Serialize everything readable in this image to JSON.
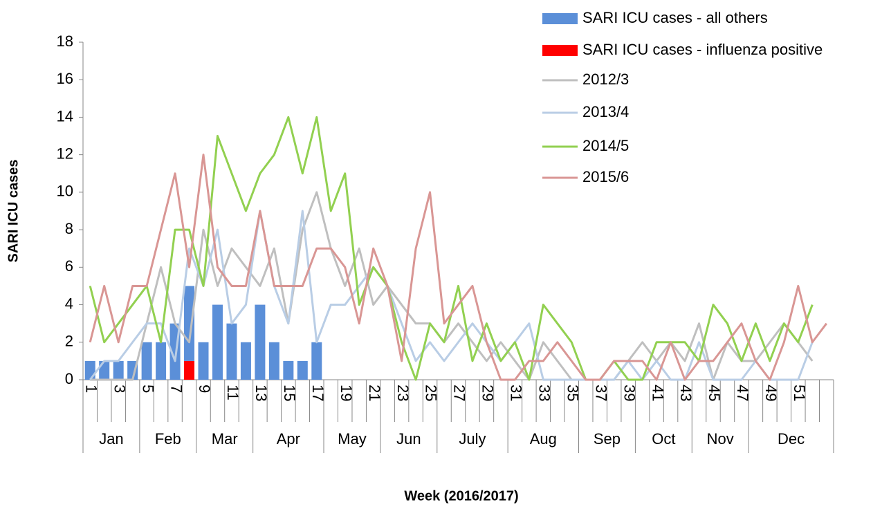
{
  "chart_data": {
    "type": "combo",
    "x_label": "Week (2016/2017)",
    "y_label": "SARI ICU cases",
    "categories": [
      "1",
      null,
      "3",
      null,
      "5",
      null,
      "7",
      null,
      "9",
      null,
      "11",
      null,
      "13",
      null,
      "15",
      null,
      "17",
      null,
      "19",
      null,
      "21",
      null,
      "23",
      null,
      "25",
      null,
      "27",
      null,
      "29",
      null,
      "31",
      null,
      "33",
      null,
      "35",
      null,
      "37",
      null,
      "39",
      null,
      "41",
      null,
      "43",
      null,
      "45",
      null,
      "47",
      null,
      "49",
      null,
      "51",
      null,
      null
    ],
    "months": [
      "Jan",
      "Jan",
      "Jan",
      "Jan",
      "Feb",
      "Feb",
      "Feb",
      "Feb",
      "Mar",
      "Mar",
      "Mar",
      "Mar",
      "Apr",
      "Apr",
      "Apr",
      "Apr",
      "Apr",
      "May",
      "May",
      "May",
      "May",
      "Jun",
      "Jun",
      "Jun",
      "Jun",
      "July",
      "July",
      "July",
      "July",
      "July",
      "Aug",
      "Aug",
      "Aug",
      "Aug",
      "Aug",
      "Sep",
      "Sep",
      "Sep",
      "Sep",
      "Oct",
      "Oct",
      "Oct",
      "Oct",
      "Nov",
      "Nov",
      "Nov",
      "Nov",
      "Dec",
      "Dec",
      "Dec",
      "Dec",
      "Dec",
      "Dec"
    ],
    "ylim": [
      0,
      18
    ],
    "yticks": [
      0,
      2,
      4,
      6,
      8,
      10,
      12,
      14,
      16,
      18
    ],
    "legend": "top-right",
    "series": [
      {
        "name": "SARI ICU cases - all others",
        "type": "bar",
        "color": "#5b8fd8",
        "values": [
          1,
          1,
          1,
          1,
          2,
          2,
          3,
          4,
          2,
          4,
          3,
          2,
          4,
          2,
          1,
          1,
          2,
          null,
          null,
          null,
          null,
          null,
          null,
          null,
          null,
          null,
          null,
          null,
          null,
          null,
          null,
          null,
          null,
          null,
          null,
          null,
          null,
          null,
          null,
          null,
          null,
          null,
          null,
          null,
          null,
          null,
          null,
          null,
          null,
          null,
          null,
          null,
          null
        ]
      },
      {
        "name": "SARI ICU cases - influenza positive",
        "type": "bar",
        "color": "#ff0000",
        "values": [
          0,
          0,
          0,
          0,
          0,
          0,
          0,
          1,
          0,
          0,
          0,
          0,
          0,
          0,
          0,
          0,
          0,
          null,
          null,
          null,
          null,
          null,
          null,
          null,
          null,
          null,
          null,
          null,
          null,
          null,
          null,
          null,
          null,
          null,
          null,
          null,
          null,
          null,
          null,
          null,
          null,
          null,
          null,
          null,
          null,
          null,
          null,
          null,
          null,
          null,
          null,
          null,
          null
        ]
      },
      {
        "name": "2012/3",
        "type": "line",
        "color": "#bfbfbf",
        "values": [
          0,
          0,
          0,
          0,
          3,
          6,
          3,
          2,
          8,
          5,
          7,
          6,
          5,
          7,
          3,
          8,
          10,
          7,
          5,
          7,
          4,
          5,
          4,
          3,
          3,
          2,
          3,
          2,
          1,
          2,
          1,
          0,
          2,
          1,
          0,
          0,
          0,
          0,
          1,
          2,
          1,
          2,
          1,
          3,
          0,
          2,
          1,
          1,
          2,
          3,
          2,
          1,
          null
        ]
      },
      {
        "name": "2013/4",
        "type": "line",
        "color": "#b9cde5",
        "values": [
          0,
          1,
          1,
          2,
          3,
          3,
          1,
          7,
          5,
          8,
          3,
          4,
          9,
          5,
          3,
          9,
          2,
          4,
          4,
          5,
          6,
          5,
          3,
          1,
          2,
          1,
          2,
          3,
          2,
          1,
          2,
          3,
          0,
          0,
          0,
          0,
          0,
          0,
          1,
          0,
          1,
          0,
          0,
          2,
          0,
          0,
          0,
          1,
          0,
          0,
          0,
          2,
          null
        ]
      },
      {
        "name": "2014/5",
        "type": "line",
        "color": "#92d050",
        "values": [
          5,
          2,
          3,
          4,
          5,
          2,
          8,
          8,
          5,
          13,
          11,
          9,
          11,
          12,
          14,
          11,
          14,
          9,
          11,
          4,
          6,
          5,
          2,
          0,
          3,
          2,
          5,
          1,
          3,
          1,
          2,
          0,
          4,
          3,
          2,
          0,
          0,
          1,
          0,
          0,
          2,
          2,
          2,
          1,
          4,
          3,
          1,
          3,
          1,
          3,
          2,
          4,
          null
        ]
      },
      {
        "name": "2015/6",
        "type": "line",
        "color": "#d99694",
        "values": [
          2,
          5,
          2,
          5,
          5,
          8,
          11,
          6,
          12,
          6,
          5,
          5,
          9,
          5,
          5,
          5,
          7,
          7,
          6,
          3,
          7,
          5,
          1,
          7,
          10,
          3,
          4,
          5,
          2,
          0,
          0,
          1,
          1,
          2,
          1,
          0,
          0,
          1,
          1,
          1,
          0,
          2,
          0,
          1,
          1,
          2,
          3,
          1,
          0,
          2,
          5,
          2,
          3
        ]
      }
    ]
  }
}
